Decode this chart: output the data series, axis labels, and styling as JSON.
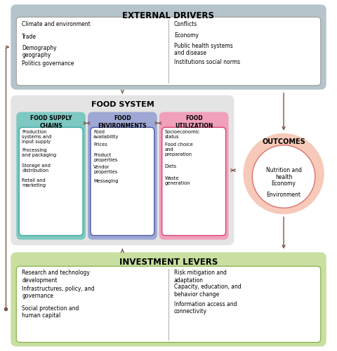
{
  "title_external": "EXTERNAL DRIVERS",
  "title_food_system": "FOOD SYSTEM",
  "title_investment": "INVESTMENT LEVERS",
  "title_outcomes": "OUTCOMES",
  "external_left": [
    "Climate and environment",
    "Trade",
    "Demography\ngeography",
    "Politics governance"
  ],
  "external_right": [
    "Conflicts",
    "Economy",
    "Public health systems\nand disease",
    "Institutions social norms"
  ],
  "food_supply_title": "FOOD SUPPLY\nCHAINS",
  "food_supply_items": [
    "Production\nsystems and\ninput supply",
    "Processing\nand packaging",
    "Storage and\ndistribution",
    "Retail and\nmarketing"
  ],
  "food_env_title": "FOOD\nENVIRONMENTS",
  "food_env_items": [
    "Food\navailability",
    "Prices",
    "Product\nproperties",
    "Vendor\nproperties",
    "Messaging"
  ],
  "food_util_title": "FOOD\nUTILIZATION",
  "food_util_items": [
    "Socioeconomic\nstatus",
    "Food choice\nand\npreparation",
    "Diets",
    "Waste\ngeneration"
  ],
  "outcomes_items": [
    "Nutrition and\nhealth",
    "Economy",
    "Environment"
  ],
  "investment_left": [
    "Research and technology\ndevelopment",
    "Infrastructures, policy, and\ngovernance",
    "Social protection and\nhuman capital"
  ],
  "investment_right": [
    "Risk mitigation and\nadaptation",
    "Capacity, education, and\nbehavior change",
    "Information access and\nconnectivity"
  ],
  "color_external_bg": "#b5c4cb",
  "color_external_box": "#ffffff",
  "color_food_system_bg": "#e4e4e4",
  "color_food_supply_bg": "#7ec8c2",
  "color_food_supply_border": "#3aaba0",
  "color_food_env_bg": "#9fa8d4",
  "color_food_env_border": "#4a57a8",
  "color_food_util_bg": "#f0a0ba",
  "color_food_util_border": "#d94070",
  "color_outcomes_outer": "#f7c9b8",
  "color_outcomes_inner": "#ffffff",
  "color_outcomes_border": "#d97070",
  "color_investment_bg": "#c8dfa0",
  "color_investment_box": "#ffffff",
  "color_investment_border": "#7aaa40",
  "color_arrow": "#7a5545",
  "bg_color": "#ffffff"
}
